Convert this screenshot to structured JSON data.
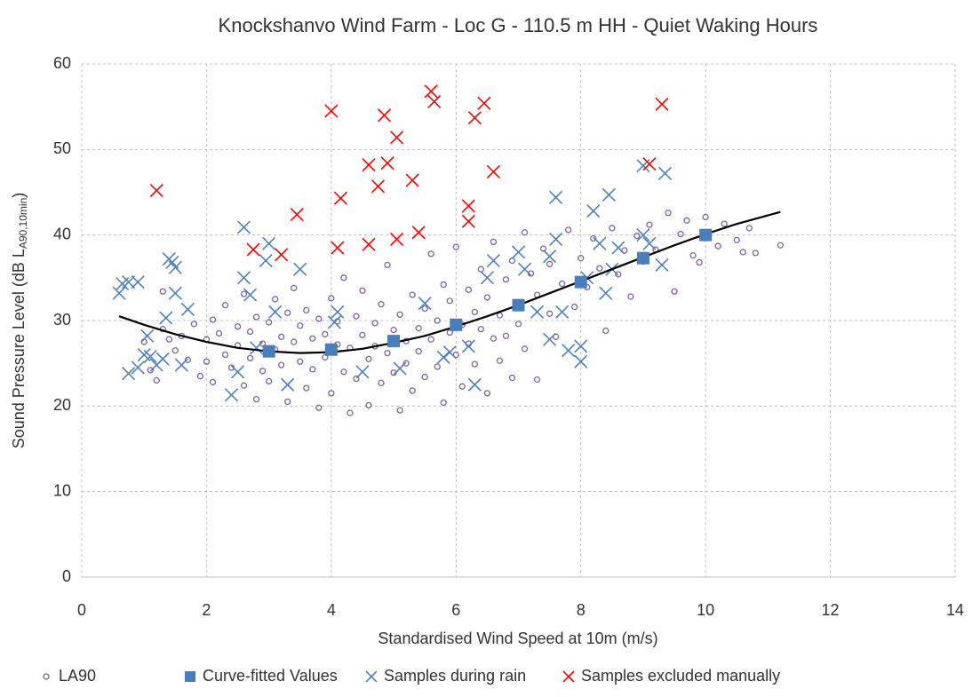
{
  "chart_data": {
    "type": "scatter",
    "title": "Knockshanvo Wind Farm - Loc G - 110.5 m HH - Quiet Waking Hours",
    "xlabel": "Standardised Wind Speed at 10m (m/s)",
    "ylabel": "Sound Pressure Level (dB L",
    "ylabel_sub": "A90,10min",
    "ylabel_end": ")",
    "xlim": [
      0,
      14
    ],
    "xticks": [
      0,
      2,
      4,
      6,
      8,
      10,
      12,
      14
    ],
    "ylim": [
      0,
      60
    ],
    "yticks": [
      0,
      10,
      20,
      30,
      40,
      50,
      60
    ],
    "grid": true,
    "legend": "bottom",
    "series": [
      {
        "name": "LA90",
        "color": "#8064a2",
        "marker": "circle",
        "x": [
          1.0,
          1.1,
          1.2,
          1.3,
          1.3,
          1.4,
          1.5,
          1.6,
          1.7,
          1.8,
          1.9,
          2.0,
          2.0,
          2.1,
          2.1,
          2.2,
          2.3,
          2.3,
          2.4,
          2.5,
          2.5,
          2.6,
          2.6,
          2.7,
          2.7,
          2.8,
          2.8,
          2.9,
          2.9,
          3.0,
          3.0,
          3.1,
          3.1,
          3.2,
          3.2,
          3.3,
          3.3,
          3.4,
          3.4,
          3.5,
          3.5,
          3.6,
          3.6,
          3.7,
          3.7,
          3.8,
          3.8,
          3.9,
          3.9,
          4.0,
          4.0,
          4.1,
          4.1,
          4.2,
          4.2,
          4.3,
          4.3,
          4.4,
          4.4,
          4.5,
          4.5,
          4.6,
          4.6,
          4.7,
          4.7,
          4.8,
          4.8,
          4.9,
          4.9,
          5.0,
          5.0,
          5.1,
          5.1,
          5.2,
          5.2,
          5.3,
          5.3,
          5.4,
          5.4,
          5.5,
          5.5,
          5.6,
          5.6,
          5.7,
          5.7,
          5.8,
          5.8,
          5.9,
          5.9,
          6.0,
          6.0,
          6.1,
          6.1,
          6.2,
          6.2,
          6.3,
          6.3,
          6.4,
          6.4,
          6.5,
          6.5,
          6.6,
          6.6,
          6.7,
          6.7,
          6.8,
          6.8,
          6.9,
          6.9,
          7.0,
          7.0,
          7.1,
          7.1,
          7.2,
          7.3,
          7.3,
          7.4,
          7.5,
          7.5,
          7.6,
          7.7,
          7.8,
          7.9,
          8.0,
          8.1,
          8.2,
          8.3,
          8.4,
          8.5,
          8.6,
          8.7,
          8.8,
          8.9,
          9.0,
          9.1,
          9.2,
          9.4,
          9.5,
          9.6,
          9.7,
          9.8,
          9.9,
          10.0,
          10.2,
          10.3,
          10.5,
          10.6,
          10.7,
          10.8,
          11.2
        ],
        "values": [
          27.5,
          24.2,
          23.0,
          29.0,
          33.4,
          27.8,
          26.5,
          28.2,
          25.4,
          29.6,
          23.5,
          27.8,
          25.2,
          30.1,
          22.8,
          28.5,
          26.0,
          31.8,
          24.5,
          29.3,
          27.1,
          22.4,
          33.1,
          28.7,
          25.6,
          30.4,
          20.8,
          27.3,
          24.1,
          29.8,
          22.9,
          26.6,
          32.5,
          28.1,
          24.8,
          30.9,
          20.5,
          27.5,
          33.8,
          25.2,
          29.4,
          22.1,
          31.2,
          27.9,
          24.3,
          30.2,
          19.8,
          28.4,
          25.7,
          32.6,
          21.5,
          27.2,
          29.9,
          24.0,
          35.0,
          26.8,
          19.2,
          30.5,
          23.2,
          28.3,
          33.5,
          25.5,
          20.1,
          29.7,
          27.0,
          22.7,
          31.9,
          26.2,
          36.5,
          28.9,
          23.9,
          30.7,
          19.5,
          27.6,
          25.0,
          33.0,
          21.8,
          29.1,
          26.4,
          31.4,
          23.4,
          37.8,
          27.8,
          24.6,
          30.0,
          34.2,
          20.4,
          28.6,
          32.3,
          26.0,
          38.6,
          29.5,
          22.3,
          33.6,
          27.3,
          31.0,
          24.9,
          36.0,
          29.0,
          32.7,
          21.5,
          27.9,
          39.2,
          30.6,
          25.3,
          34.8,
          28.2,
          37.0,
          23.3,
          32.1,
          29.6,
          40.3,
          26.7,
          35.5,
          33.0,
          23.1,
          38.4,
          30.8,
          36.6,
          28.1,
          34.3,
          40.6,
          31.6,
          37.3,
          33.9,
          39.6,
          36.1,
          28.8,
          40.8,
          35.4,
          38.2,
          32.8,
          39.9,
          36.9,
          41.2,
          38.3,
          42.6,
          33.4,
          40.1,
          41.7,
          37.6,
          36.8,
          42.1,
          38.7,
          41.3,
          39.4,
          38.0,
          40.8,
          37.9,
          38.8
        ]
      },
      {
        "name": "Curve-fitted Values",
        "color": "#4a7ebb",
        "marker": "square",
        "x": [
          3,
          4,
          5,
          6,
          7,
          8,
          9,
          10
        ],
        "values": [
          26.4,
          26.6,
          27.6,
          29.5,
          31.8,
          34.5,
          37.3,
          40.0
        ]
      },
      {
        "name": "Samples during rain",
        "color": "#4f81bd",
        "marker": "x",
        "x": [
          0.6,
          0.65,
          0.75,
          0.9,
          0.75,
          0.9,
          1.0,
          1.05,
          1.1,
          1.2,
          1.3,
          1.35,
          1.4,
          1.45,
          1.5,
          1.5,
          1.6,
          1.7,
          2.4,
          2.5,
          2.6,
          2.6,
          2.7,
          2.8,
          2.95,
          3.0,
          3.1,
          3.3,
          3.5,
          4.05,
          4.1,
          4.5,
          5.1,
          5.5,
          5.8,
          5.9,
          6.2,
          6.3,
          6.5,
          6.6,
          7.0,
          7.1,
          7.3,
          7.5,
          7.5,
          7.6,
          7.6,
          7.8,
          7.7,
          8.0,
          8.0,
          8.1,
          8.2,
          8.3,
          8.45,
          8.5,
          8.6,
          8.4,
          9.0,
          9.0,
          9.1,
          9.35,
          9.3
        ],
        "values": [
          33.2,
          34.3,
          34.5,
          34.5,
          23.8,
          24.5,
          26.0,
          28.2,
          25.8,
          24.8,
          25.5,
          30.3,
          37.2,
          36.8,
          36.2,
          33.2,
          24.8,
          31.3,
          21.3,
          24.0,
          35.0,
          40.9,
          33.0,
          26.8,
          37.0,
          39.0,
          31.0,
          22.5,
          36.0,
          29.8,
          31.0,
          24.0,
          24.4,
          32.0,
          25.7,
          26.3,
          27.0,
          22.5,
          35.0,
          37.0,
          38.0,
          36.0,
          31.0,
          27.8,
          37.5,
          44.4,
          39.5,
          26.5,
          31.0,
          25.2,
          27.0,
          35.0,
          42.8,
          39.0,
          44.7,
          36.0,
          38.5,
          33.2,
          48.1,
          40.0,
          39.0,
          47.2,
          36.5
        ]
      },
      {
        "name": "Samples excluded manually",
        "color": "#ff0000",
        "marker": "x",
        "x": [
          1.2,
          2.75,
          3.2,
          3.45,
          4.0,
          4.1,
          4.15,
          4.6,
          4.6,
          4.75,
          4.85,
          4.9,
          5.05,
          5.05,
          5.3,
          5.4,
          5.6,
          5.65,
          6.2,
          6.2,
          6.3,
          6.45,
          6.6,
          9.1,
          9.3
        ],
        "values": [
          45.2,
          38.3,
          37.7,
          42.4,
          54.5,
          38.5,
          44.3,
          48.2,
          38.9,
          45.7,
          54.0,
          48.4,
          51.4,
          39.5,
          46.4,
          40.3,
          56.8,
          55.6,
          43.4,
          41.6,
          53.7,
          55.4,
          47.4,
          48.3,
          55.3
        ]
      }
    ],
    "fit_line": {
      "color": "#000000",
      "x": [
        0.6,
        1,
        1.5,
        2,
        2.5,
        3,
        3.5,
        4,
        4.5,
        5,
        5.5,
        6,
        6.5,
        7,
        7.5,
        8,
        8.5,
        9,
        9.5,
        10,
        10.5,
        11,
        11.2
      ],
      "values": [
        30.5,
        29.5,
        28.4,
        27.5,
        26.8,
        26.4,
        26.2,
        26.3,
        26.7,
        27.4,
        28.2,
        29.3,
        30.5,
        31.8,
        33.2,
        34.6,
        36.0,
        37.4,
        38.8,
        40.1,
        41.3,
        42.3,
        42.7
      ]
    }
  }
}
